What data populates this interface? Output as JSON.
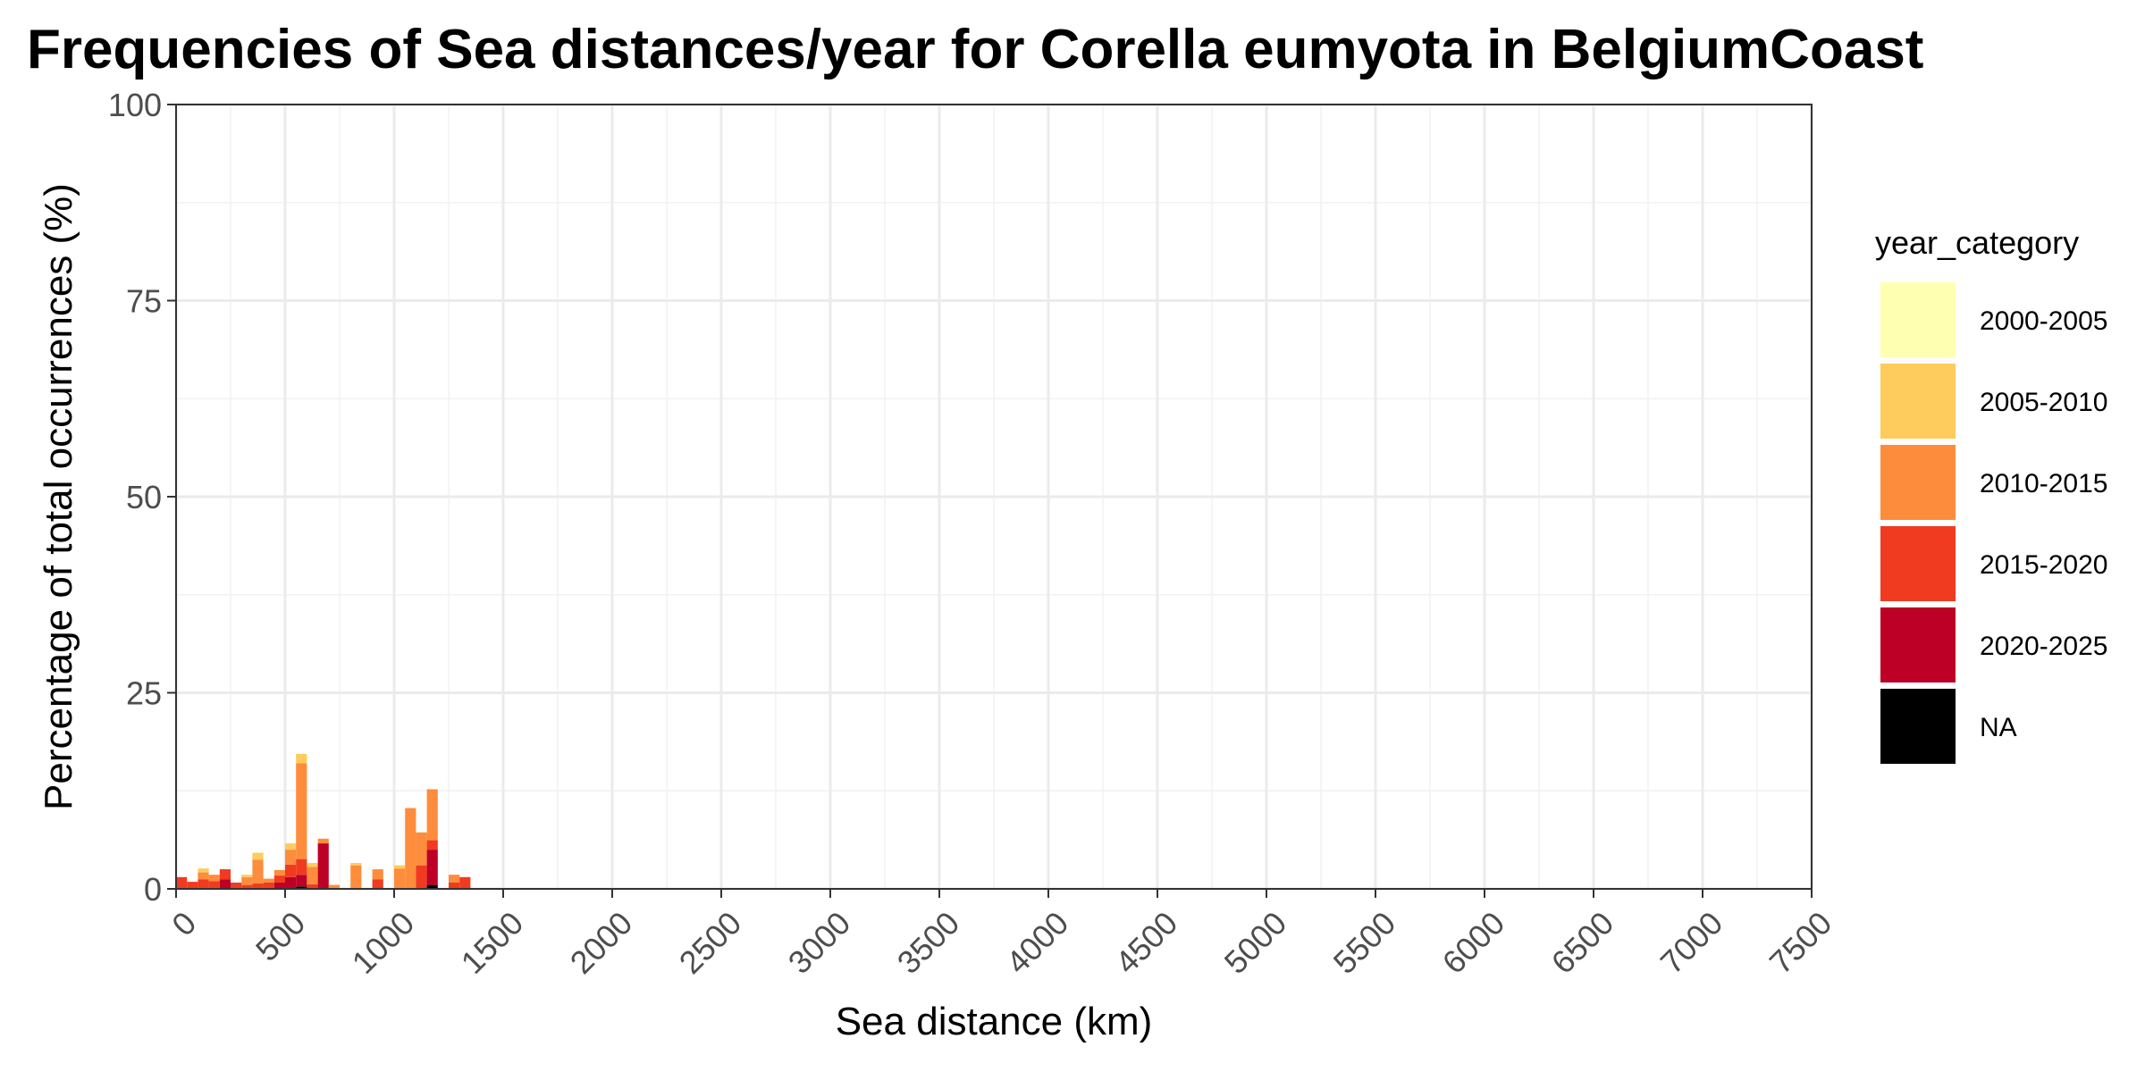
{
  "chart_data": {
    "type": "bar",
    "stacked": true,
    "title": "Frequencies of Sea distances/year for Corella eumyota in BelgiumCoast",
    "xlabel": "Sea distance (km)",
    "ylabel": "Percentage of total occurrences (%)",
    "xlim": [
      0,
      7500
    ],
    "ylim": [
      0,
      100
    ],
    "x_ticks": [
      0,
      500,
      1000,
      1500,
      2000,
      2500,
      3000,
      3500,
      4000,
      4500,
      5000,
      5500,
      6000,
      6500,
      7000,
      7500
    ],
    "y_ticks": [
      0,
      25,
      50,
      75,
      100
    ],
    "x_tick_labels": [
      "0",
      "500",
      "1000",
      "1500",
      "2000",
      "2500",
      "3000",
      "3500",
      "4000",
      "4500",
      "5000",
      "5500",
      "6000",
      "6500",
      "7000",
      "7500"
    ],
    "y_tick_labels": [
      "0",
      "25",
      "50",
      "75",
      "100"
    ],
    "bin_width": 50,
    "grid": true,
    "legend": {
      "title": "year_category",
      "position": "right"
    },
    "series": [
      {
        "name": "2000-2005",
        "color": "#FFFFB2"
      },
      {
        "name": "2005-2010",
        "color": "#FECC5C"
      },
      {
        "name": "2010-2015",
        "color": "#FD8D3C"
      },
      {
        "name": "2015-2020",
        "color": "#F03B20"
      },
      {
        "name": "2020-2025",
        "color": "#BD0026"
      },
      {
        "name": "NA",
        "color": "#000000"
      }
    ],
    "bins": [
      {
        "x": 0,
        "values": {
          "2015-2020": 1.5
        }
      },
      {
        "x": 50,
        "values": {
          "2015-2020": 0.9
        }
      },
      {
        "x": 100,
        "values": {
          "2015-2020": 1.2,
          "2010-2015": 0.9,
          "2005-2010": 0.5
        }
      },
      {
        "x": 150,
        "values": {
          "2015-2020": 1.0,
          "2010-2015": 0.8
        }
      },
      {
        "x": 200,
        "values": {
          "2020-2025": 1.2,
          "2015-2020": 1.3
        }
      },
      {
        "x": 250,
        "values": {
          "2015-2020": 0.8
        }
      },
      {
        "x": 300,
        "values": {
          "2015-2020": 0.5,
          "2010-2015": 1.0,
          "2005-2010": 0.3
        }
      },
      {
        "x": 350,
        "values": {
          "2015-2020": 0.7,
          "2010-2015": 3.0,
          "2005-2010": 0.9
        }
      },
      {
        "x": 400,
        "values": {
          "2015-2020": 0.8,
          "2010-2015": 0.5
        }
      },
      {
        "x": 450,
        "values": {
          "2020-2025": 0.8,
          "2015-2020": 0.9,
          "2010-2015": 0.7
        }
      },
      {
        "x": 500,
        "values": {
          "2020-2025": 1.5,
          "2015-2020": 1.6,
          "2010-2015": 1.9,
          "2005-2010": 0.8
        }
      },
      {
        "x": 550,
        "values": {
          "NA": 0.3,
          "2020-2025": 1.5,
          "2015-2020": 2.0,
          "2010-2015": 12.2,
          "2005-2010": 1.2
        }
      },
      {
        "x": 600,
        "values": {
          "2015-2020": 0.6,
          "2010-2015": 2.2,
          "2005-2010": 0.5
        }
      },
      {
        "x": 650,
        "values": {
          "2020-2025": 5.8,
          "2010-2015": 0.6
        }
      },
      {
        "x": 700,
        "values": {
          "2010-2015": 0.5
        }
      },
      {
        "x": 800,
        "values": {
          "2010-2015": 3.0,
          "2005-2010": 0.3
        }
      },
      {
        "x": 900,
        "values": {
          "2015-2020": 1.2,
          "2010-2015": 1.3
        }
      },
      {
        "x": 1000,
        "values": {
          "2010-2015": 2.6,
          "2005-2010": 0.4
        }
      },
      {
        "x": 1050,
        "values": {
          "2010-2015": 10.3
        }
      },
      {
        "x": 1100,
        "values": {
          "2015-2020": 3.0,
          "2010-2015": 4.2
        }
      },
      {
        "x": 1150,
        "values": {
          "NA": 0.5,
          "2020-2025": 4.5,
          "2015-2020": 1.2,
          "2010-2015": 6.5
        }
      },
      {
        "x": 1250,
        "values": {
          "2015-2020": 0.8,
          "2010-2015": 1.0
        }
      },
      {
        "x": 1300,
        "values": {
          "2015-2020": 1.5
        }
      }
    ]
  }
}
